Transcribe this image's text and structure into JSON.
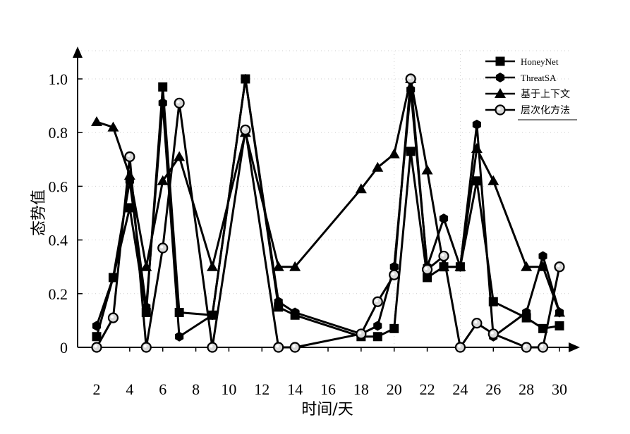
{
  "chart_data": {
    "type": "line",
    "title": "",
    "xlabel": "时间/天",
    "ylabel": "态势值",
    "xlim": [
      2,
      30
    ],
    "ylim": [
      0,
      1.0
    ],
    "x_ticks": [
      2,
      4,
      6,
      8,
      10,
      12,
      14,
      16,
      18,
      20,
      22,
      24,
      26,
      28,
      30
    ],
    "y_ticks": [
      0,
      0.2,
      0.4,
      0.6,
      0.8,
      1.0
    ],
    "y_tick_labels": [
      "0",
      "0.2",
      "0.4",
      "0.6",
      "0.8",
      "1.0"
    ],
    "grid": false,
    "legend_position": "top-right",
    "series": [
      {
        "name": "HoneyNet",
        "marker": "square",
        "points": [
          [
            2,
            0.04
          ],
          [
            3,
            0.26
          ],
          [
            4,
            0.52
          ],
          [
            5,
            0.13
          ],
          [
            6,
            0.97
          ],
          [
            7,
            0.13
          ],
          [
            9,
            0.12
          ],
          [
            11,
            1.0
          ],
          [
            13,
            0.15
          ],
          [
            14,
            0.12
          ],
          [
            18,
            0.04
          ],
          [
            19,
            0.04
          ],
          [
            20,
            0.07
          ],
          [
            21,
            0.73
          ],
          [
            22,
            0.26
          ],
          [
            23,
            0.3
          ],
          [
            24,
            0.3
          ],
          [
            25,
            0.62
          ],
          [
            26,
            0.17
          ],
          [
            28,
            0.11
          ],
          [
            29,
            0.07
          ],
          [
            30,
            0.08
          ]
        ]
      },
      {
        "name": "ThreatSA",
        "marker": "hexagon",
        "points": [
          [
            2,
            0.08
          ],
          [
            3,
            0.26
          ],
          [
            4,
            0.62
          ],
          [
            5,
            0.15
          ],
          [
            6,
            0.91
          ],
          [
            7,
            0.04
          ],
          [
            9,
            0.12
          ],
          [
            11,
            1.0
          ],
          [
            13,
            0.17
          ],
          [
            14,
            0.13
          ],
          [
            18,
            0.05
          ],
          [
            19,
            0.08
          ],
          [
            20,
            0.3
          ],
          [
            21,
            0.96
          ],
          [
            22,
            0.3
          ],
          [
            23,
            0.48
          ],
          [
            24,
            0.3
          ],
          [
            25,
            0.83
          ],
          [
            26,
            0.04
          ],
          [
            28,
            0.13
          ],
          [
            29,
            0.34
          ],
          [
            30,
            0.13
          ]
        ]
      },
      {
        "name": "基于上下文",
        "marker": "triangle",
        "points": [
          [
            2,
            0.84
          ],
          [
            3,
            0.82
          ],
          [
            4,
            0.64
          ],
          [
            5,
            0.3
          ],
          [
            6,
            0.62
          ],
          [
            7,
            0.71
          ],
          [
            9,
            0.3
          ],
          [
            11,
            0.8
          ],
          [
            13,
            0.3
          ],
          [
            14,
            0.3
          ],
          [
            18,
            0.59
          ],
          [
            19,
            0.67
          ],
          [
            20,
            0.72
          ],
          [
            21,
            1.0
          ],
          [
            22,
            0.66
          ],
          [
            23,
            0.3
          ],
          [
            24,
            0.3
          ],
          [
            25,
            0.74
          ],
          [
            26,
            0.62
          ],
          [
            28,
            0.3
          ],
          [
            29,
            0.3
          ],
          [
            30,
            0.13
          ]
        ]
      },
      {
        "name": "层次化方法",
        "marker": "circle",
        "points": [
          [
            2,
            0.0
          ],
          [
            3,
            0.11
          ],
          [
            4,
            0.71
          ],
          [
            5,
            0.0
          ],
          [
            6,
            0.37
          ],
          [
            7,
            0.91
          ],
          [
            9,
            0.0
          ],
          [
            11,
            0.81
          ],
          [
            13,
            0.0
          ],
          [
            14,
            0.0
          ],
          [
            18,
            0.05
          ],
          [
            19,
            0.17
          ],
          [
            20,
            0.27
          ],
          [
            21,
            1.0
          ],
          [
            22,
            0.29
          ],
          [
            23,
            0.34
          ],
          [
            24,
            0.0
          ],
          [
            25,
            0.09
          ],
          [
            26,
            0.05
          ],
          [
            28,
            0.0
          ],
          [
            29,
            0.0
          ],
          [
            30,
            0.3
          ]
        ]
      }
    ]
  }
}
